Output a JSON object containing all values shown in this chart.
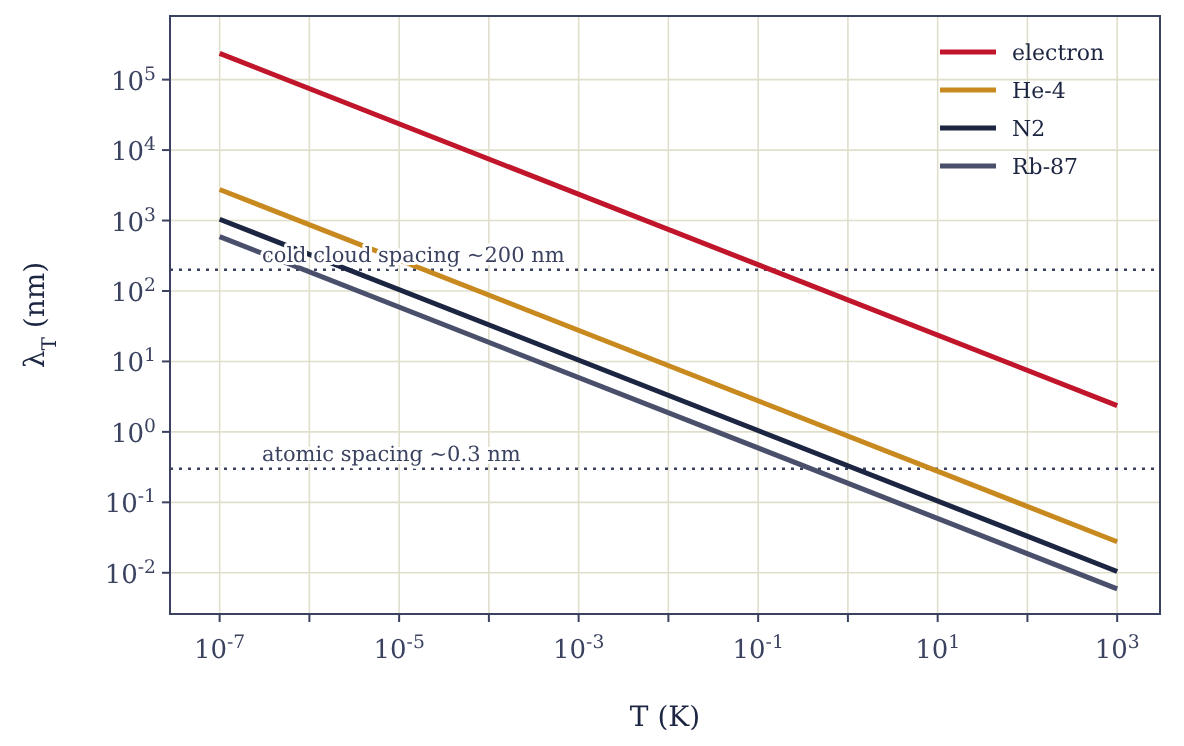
{
  "chart_data": {
    "type": "line",
    "xlabel": "T (K)",
    "ylabel": "λ$_{T}$ (nm)",
    "log": "xy",
    "x": [
      1e-07,
      1000.0
    ],
    "series": [
      {
        "name": "electron",
        "color": "#c0152a",
        "values": [
          236000,
          2.36
        ]
      },
      {
        "name": "He-4",
        "color": "#c8891e",
        "values": [
          2760,
          0.0276
        ]
      },
      {
        "name": "N2",
        "color": "#1c2541",
        "values": [
          1044,
          0.01044
        ]
      },
      {
        "name": "Rb-87",
        "color": "#4a506b",
        "values": [
          591,
          0.0059
        ]
      }
    ],
    "xlim": [
      2.8e-08,
      3000.0
    ],
    "xticks": [
      {
        "value": 1e-07,
        "label": "10$^{-7}$"
      },
      {
        "value": 1e-06,
        "label": null
      },
      {
        "value": 1e-05,
        "label": "10$^{-5}$"
      },
      {
        "value": 0.0001,
        "label": null
      },
      {
        "value": 0.001,
        "label": "10$^{-3}$"
      },
      {
        "value": 0.01,
        "label": null
      },
      {
        "value": 0.1,
        "label": "10$^{-1}$"
      },
      {
        "value": 1,
        "label": null
      },
      {
        "value": 10,
        "label": "10$^{1}$"
      },
      {
        "value": 100,
        "label": null
      },
      {
        "value": 1000,
        "label": "10$^{3}$"
      }
    ],
    "ylim": [
      0.0026,
      800000.0
    ],
    "yticks": [
      {
        "value": 0.01,
        "label": "10$^{-2}$"
      },
      {
        "value": 0.1,
        "label": "10$^{-1}$"
      },
      {
        "value": 1,
        "label": "10$^{0}$"
      },
      {
        "value": 10,
        "label": "10$^{1}$"
      },
      {
        "value": 100,
        "label": "10$^{2}$"
      },
      {
        "value": 1000,
        "label": "10$^{3}$"
      },
      {
        "value": 10000.0,
        "label": "10$^{4}$"
      },
      {
        "value": 100000.0,
        "label": "10$^{5}$"
      }
    ],
    "ref_lines": [
      {
        "axis": "y",
        "value": 200,
        "label": "cold cloud spacing ~200 nm",
        "color": "#3a4260",
        "line_style": "dotted"
      },
      {
        "axis": "y",
        "value": 0.3,
        "label": "atomic spacing ~0.3 nm",
        "color": "#3a4260",
        "line_style": "dotted"
      }
    ],
    "grid": true,
    "legend": "top right",
    "line_style": "solid"
  }
}
